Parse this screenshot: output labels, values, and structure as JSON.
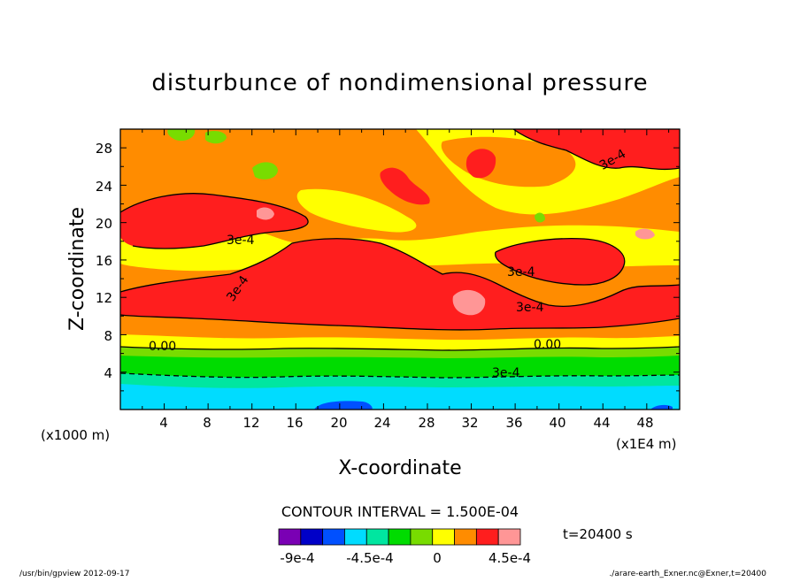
{
  "chart_data": {
    "type": "heatmap",
    "title": "disturbunce of nondimensional pressure",
    "xlabel": "X-coordinate",
    "ylabel": "Z-coordinate",
    "x_unit": "(x1E4 m)",
    "y_unit": "(x1000 m)",
    "xlim": [
      0,
      51
    ],
    "ylim": [
      0,
      30
    ],
    "x_ticks": [
      "4",
      "8",
      "12",
      "16",
      "20",
      "24",
      "28",
      "32",
      "36",
      "40",
      "44",
      "48"
    ],
    "y_ticks": [
      "4",
      "8",
      "12",
      "16",
      "20",
      "24",
      "28"
    ],
    "contour_interval_label": "CONTOUR INTERVAL = 1.500E-04",
    "contour_labels": [
      "3e-4",
      "3e-4",
      "3e-4",
      "3e-4",
      "3e-4",
      "0.00",
      "0.00",
      "3e-4"
    ],
    "time_label": "t=20400 s",
    "colorbar": {
      "colors": [
        "#7a00b4",
        "#0000c8",
        "#0050ff",
        "#00dcff",
        "#00e6a0",
        "#00dc00",
        "#78dc00",
        "#ffff00",
        "#ff8c00",
        "#ff1e1e",
        "#ff9696"
      ],
      "labels": [
        "-9e-4",
        "-4.5e-4",
        "0",
        "4.5e-4"
      ]
    },
    "layers_z_band": [
      {
        "z_from": 0,
        "z_to": 1.2,
        "value": "#00dcff"
      },
      {
        "z_from": 1.2,
        "z_to": 2.5,
        "value": "#00e6a0"
      },
      {
        "z_from": 2.5,
        "z_to": 4.8,
        "value": "#00dc00"
      },
      {
        "z_from": 4.8,
        "z_to": 6.2,
        "value": "#78dc00"
      },
      {
        "z_from": 6.2,
        "z_to": 8,
        "value": "#ffff00"
      },
      {
        "z_from": 8,
        "z_to": 30,
        "value": "#ff8c00"
      }
    ]
  },
  "footer": {
    "left": "/usr/bin/gpview  2012-09-17",
    "right": "./arare-earth_Exner.nc@Exner,t=20400"
  }
}
